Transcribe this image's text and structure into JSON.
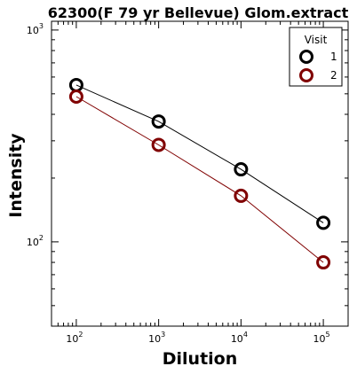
{
  "chart_data": {
    "type": "line",
    "title": "62300(F 79 yr Bellevue) Glom.extract",
    "xlabel": "Dilution",
    "ylabel": "Intensity",
    "x_scale": "log",
    "y_scale": "log",
    "xlim": [
      50,
      200000
    ],
    "ylim": [
      40,
      1100
    ],
    "x": [
      100,
      1000,
      10000,
      100000
    ],
    "x_tick_labels": [
      {
        "base": "10",
        "exp": "2"
      },
      {
        "base": "10",
        "exp": "3"
      },
      {
        "base": "10",
        "exp": "4"
      },
      {
        "base": "10",
        "exp": "5"
      }
    ],
    "y_tick_labels": [
      {
        "base": "10",
        "exp": "2"
      },
      {
        "base": "10",
        "exp": "3"
      }
    ],
    "legend": {
      "title": "Visit",
      "position": "top-right"
    },
    "grid": false,
    "series": [
      {
        "name": "1",
        "color": "#000000",
        "values": [
          550,
          370,
          220,
          123
        ]
      },
      {
        "name": "2",
        "color": "#800000",
        "values": [
          485,
          287,
          165,
          80
        ]
      }
    ]
  }
}
